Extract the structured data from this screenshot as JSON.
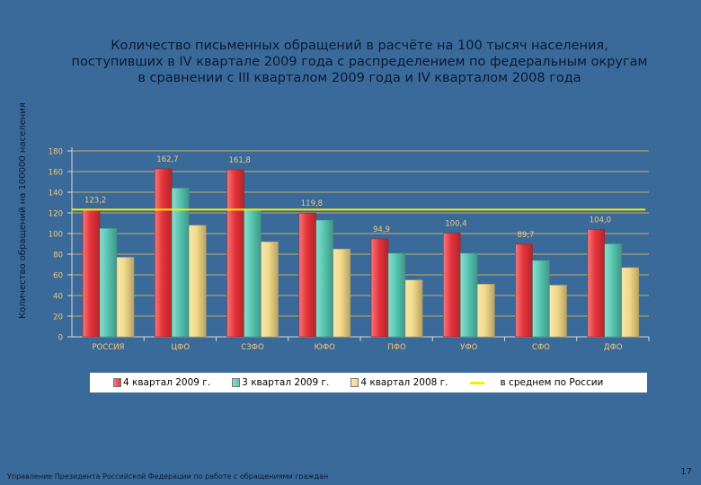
{
  "slide": {
    "title_lines": [
      "Количество письменных обращений в расчёте на 100 тысяч населения,",
      "поступивших в IV квартале 2009 года с распределением по федеральным округам",
      "в сравнении с III кварталом 2009 года и IV кварталом 2008 года"
    ],
    "footer": "Управление Президента Российской Федерации по работе с обращениями граждан",
    "page_number": "17"
  },
  "colors": {
    "background": "#3a6a9a",
    "series_q4_2009": "#e8333a",
    "series_q3_2009": "#56c7b2",
    "series_q4_2008": "#f2d988",
    "average_line": "#f5f000",
    "grid": "#c2ad68",
    "label_text": "#f2c879"
  },
  "chart_data": {
    "type": "bar",
    "ylabel": "Количество обращений на 100000 населения",
    "ylim": [
      0,
      180
    ],
    "yticks": [
      "0",
      "20",
      "40",
      "60",
      "80",
      "100",
      "120",
      "140",
      "160",
      "180"
    ],
    "grid": true,
    "legend_position": "bottom",
    "categories": [
      "РОССИЯ",
      "ЦФО",
      "СЗФО",
      "ЮФО",
      "ПФО",
      "УФО",
      "СФО",
      "ДФО"
    ],
    "series": [
      {
        "name": "4 квартал 2009 г.",
        "values": [
          123.2,
          162.7,
          161.8,
          119.8,
          94.9,
          100.4,
          89.7,
          104.0
        ],
        "labels": [
          "123,2",
          "162,7",
          "161,8",
          "119,8",
          "94,9",
          "100,4",
          "89,7",
          "104,0"
        ]
      },
      {
        "name": "3 квартал 2009 г.",
        "values": [
          105,
          144,
          124,
          113,
          81,
          81,
          74,
          90
        ]
      },
      {
        "name": "4 квартал 2008 г.",
        "values": [
          77,
          108,
          92,
          85,
          55,
          51,
          50,
          67
        ]
      }
    ],
    "average": {
      "name": "в среднем по России",
      "value": 123.2
    }
  }
}
